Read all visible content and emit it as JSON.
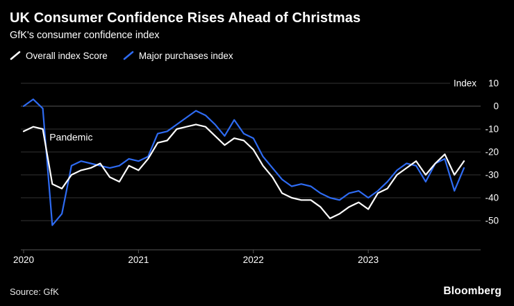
{
  "header": {
    "title": "UK Consumer Confidence Rises Ahead of Christmas",
    "subtitle": "GfK's consumer confidence index"
  },
  "legend": {
    "items": [
      {
        "label": "Overall index Score",
        "color": "#ffffff"
      },
      {
        "label": "Major purchases index",
        "color": "#2e6bf2"
      }
    ]
  },
  "chart_data": {
    "type": "line",
    "title": "UK Consumer Confidence Rises Ahead of Christmas",
    "subtitle": "GfK's consumer confidence index",
    "unit_label": "Index",
    "ylabel": "Index",
    "ylim": [
      -63,
      12
    ],
    "yticks": [
      10,
      0,
      -10,
      -20,
      -30,
      -40,
      -50
    ],
    "grid": true,
    "legend_position": "top",
    "x_start": "2020-01",
    "x_end": "2023-11",
    "x_frequency": "monthly",
    "xticks": [
      {
        "label": "2020",
        "index": 0
      },
      {
        "label": "2021",
        "index": 12
      },
      {
        "label": "2022",
        "index": 24
      },
      {
        "label": "2023",
        "index": 36
      }
    ],
    "annotation": {
      "text": "Pandemic",
      "x_index": 2.7,
      "y_value": -15
    },
    "series": [
      {
        "name": "Major purchases index",
        "color": "#2e6bf2",
        "values": [
          0,
          3,
          -1,
          -52,
          -47,
          -26,
          -24,
          -25,
          -26,
          -27,
          -26,
          -23,
          -24,
          -22,
          -12,
          -11,
          -8,
          -5,
          -2,
          -4,
          -8,
          -13,
          -6,
          -12,
          -14,
          -22,
          -27,
          -32,
          -35,
          -34,
          -35,
          -38,
          -40,
          -41,
          -38,
          -37,
          -40,
          -37,
          -33,
          -28,
          -25,
          -26,
          -33,
          -25,
          -23,
          -37,
          -27
        ]
      },
      {
        "name": "Overall index Score",
        "color": "#ffffff",
        "values": [
          -11,
          -9,
          -10,
          -34,
          -36,
          -30,
          -28,
          -27,
          -25,
          -31,
          -33,
          -26,
          -28,
          -23,
          -16,
          -15,
          -10,
          -9,
          -8,
          -9,
          -13,
          -17,
          -14,
          -15,
          -19,
          -26,
          -31,
          -38,
          -40,
          -41,
          -41,
          -44,
          -49,
          -47,
          -44,
          -42,
          -45,
          -38,
          -36,
          -30,
          -27,
          -24,
          -30,
          -25,
          -21,
          -30,
          -24
        ]
      }
    ]
  },
  "footer": {
    "source": "Source: GfK",
    "brand": "Bloomberg"
  },
  "colors": {
    "background": "#000000",
    "grid": "#333333",
    "zero_line": "#565656",
    "axis": "#565656",
    "text": "#ffffff",
    "accent_blue": "#2e6bf2"
  }
}
